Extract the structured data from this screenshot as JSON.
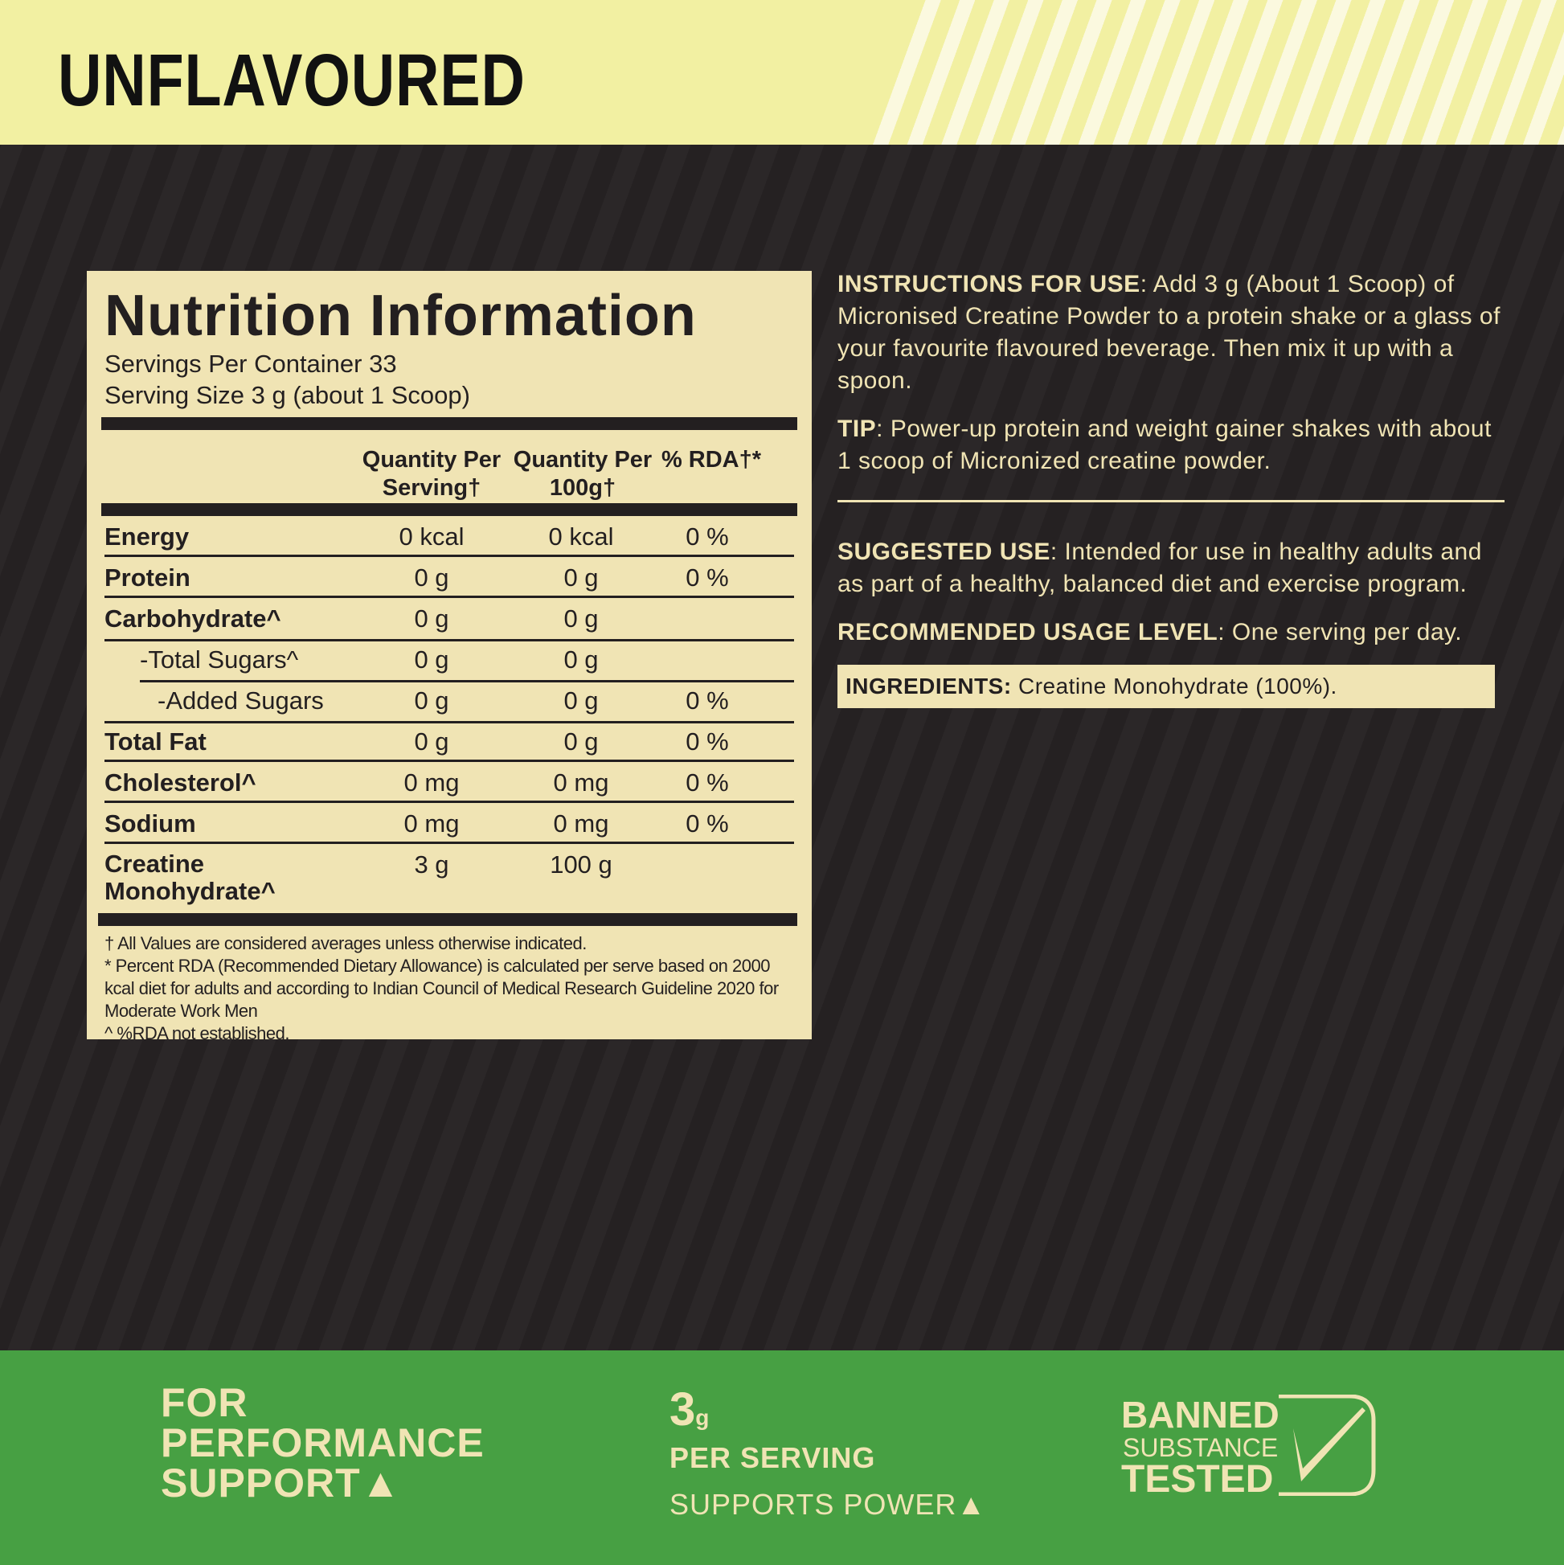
{
  "header": {
    "flavour": "UNFLAVOURED"
  },
  "nutrition": {
    "title": "Nutrition Information",
    "servings_per_container": "Servings Per Container 33",
    "serving_size": "Serving Size 3 g (about 1 Scoop)",
    "columns": [
      "Quantity Per Serving†",
      "Quantity Per 100g†",
      "% RDA†*"
    ],
    "rows": [
      {
        "label": "Energy",
        "per_serving": "0 kcal",
        "per_100g": "0 kcal",
        "rda": "0 %"
      },
      {
        "label": "Protein",
        "per_serving": "0 g",
        "per_100g": "0 g",
        "rda": "0 %"
      },
      {
        "label": "Carbohydrate^",
        "per_serving": "0 g",
        "per_100g": "0 g",
        "rda": ""
      },
      {
        "label": "-Total Sugars^",
        "per_serving": "0 g",
        "per_100g": "0 g",
        "rda": ""
      },
      {
        "label": "-Added Sugars",
        "per_serving": "0 g",
        "per_100g": "0 g",
        "rda": "0 %"
      },
      {
        "label": "Total Fat",
        "per_serving": "0 g",
        "per_100g": "0 g",
        "rda": "0 %"
      },
      {
        "label": "Cholesterol^",
        "per_serving": "0 mg",
        "per_100g": "0 mg",
        "rda": "0 %"
      },
      {
        "label": "Sodium",
        "per_serving": "0 mg",
        "per_100g": "0 mg",
        "rda": "0 %"
      },
      {
        "label": "Creatine Monohydrate^",
        "per_serving": "3 g",
        "per_100g": "100 g",
        "rda": ""
      }
    ],
    "footnotes": [
      "† All Values are considered averages unless otherwise indicated.",
      "* Percent RDA (Recommended Dietary Allowance) is calculated per serve based on 2000 kcal diet for adults and according to Indian Council of Medical Research Guideline 2020 for Moderate Work Men",
      "^ %RDA not established."
    ]
  },
  "info": {
    "instructions_label": "INSTRUCTIONS FOR USE",
    "instructions": ": Add 3 g (About 1 Scoop) of Micronised Creatine Powder to a protein shake or a glass of your favourite flavoured beverage. Then mix it up with a spoon.",
    "tip_label": "TIP",
    "tip": ": Power-up protein and weight gainer shakes with about 1 scoop of Micronized creatine powder.",
    "suggested_label": "SUGGESTED USE",
    "suggested": ": Intended for use in healthy adults and as part of a healthy, balanced diet and exercise program.",
    "recommended_label": "RECOMMENDED USAGE LEVEL",
    "recommended": ": One serving per day.",
    "ingredients_label": "INGREDIENTS:",
    "ingredients": " Creatine Monohydrate (100%)."
  },
  "footer": {
    "performance": [
      "FOR",
      "PERFORMANCE",
      "SUPPORT▲"
    ],
    "amount": "3",
    "unit": "g",
    "per_serving": "PER SERVING",
    "supports": "SUPPORTS POWER▲",
    "badge": [
      "BANNED",
      "SUBSTANCE",
      "TESTED"
    ]
  },
  "colors": {
    "header": "#f2f0a2",
    "dark": "#231f20",
    "panel": "#f0e4b4",
    "green": "#47a043"
  }
}
